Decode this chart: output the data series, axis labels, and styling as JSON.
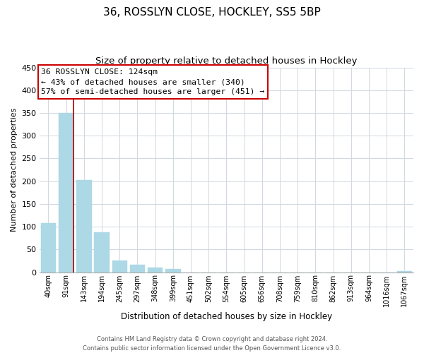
{
  "title": "36, ROSSLYN CLOSE, HOCKLEY, SS5 5BP",
  "subtitle": "Size of property relative to detached houses in Hockley",
  "xlabel": "Distribution of detached houses by size in Hockley",
  "ylabel": "Number of detached properties",
  "bar_labels": [
    "40sqm",
    "91sqm",
    "143sqm",
    "194sqm",
    "245sqm",
    "297sqm",
    "348sqm",
    "399sqm",
    "451sqm",
    "502sqm",
    "554sqm",
    "605sqm",
    "656sqm",
    "708sqm",
    "759sqm",
    "810sqm",
    "862sqm",
    "913sqm",
    "964sqm",
    "1016sqm",
    "1067sqm"
  ],
  "bar_values": [
    108,
    350,
    203,
    88,
    25,
    17,
    10,
    7,
    0,
    0,
    0,
    0,
    0,
    0,
    0,
    0,
    0,
    0,
    0,
    0,
    3
  ],
  "bar_color": "#add8e6",
  "bar_edge_color": "#add8e6",
  "vline_color": "#aa0000",
  "ylim": [
    0,
    450
  ],
  "yticks": [
    0,
    50,
    100,
    150,
    200,
    250,
    300,
    350,
    400,
    450
  ],
  "annotation_title": "36 ROSSLYN CLOSE: 124sqm",
  "annotation_line1": "← 43% of detached houses are smaller (340)",
  "annotation_line2": "57% of semi-detached houses are larger (451) →",
  "annotation_box_color": "#ffffff",
  "annotation_edge_color": "#cc0000",
  "footer_line1": "Contains HM Land Registry data © Crown copyright and database right 2024.",
  "footer_line2": "Contains public sector information licensed under the Open Government Licence v3.0.",
  "background_color": "#ffffff",
  "grid_color": "#d0d8e0"
}
